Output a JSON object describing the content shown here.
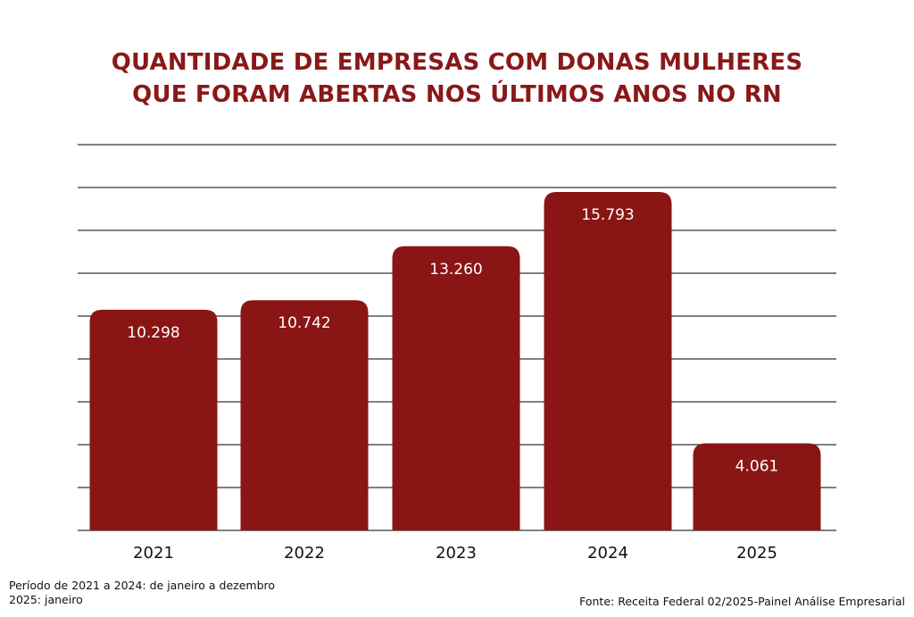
{
  "chart_data": {
    "type": "bar",
    "title": [
      "QUANTIDADE DE EMPRESAS COM DONAS MULHERES",
      "QUE FORAM ABERTAS NOS ÚLTIMOS ANOS NO RN"
    ],
    "categories": [
      "2021",
      "2022",
      "2023",
      "2024",
      "2025"
    ],
    "values": [
      10298,
      10742,
      13260,
      15793,
      4061
    ],
    "value_labels": [
      "10.298",
      "10.742",
      "13.260",
      "15.793",
      "4.061"
    ],
    "xlabel": "",
    "ylabel": "",
    "ylim": [
      0,
      18000
    ],
    "grid": true,
    "legend": "none"
  },
  "colors": {
    "bar": "#8a1515",
    "title": "#8a1818",
    "bar_label": "#ffffff",
    "gridline": "#000000"
  },
  "notes": [
    "Período de 2021 a 2024: de janeiro a dezembro",
    "2025: janeiro"
  ],
  "source": "Fonte: Receita Federal 02/2025-Painel Análise Empresarial"
}
